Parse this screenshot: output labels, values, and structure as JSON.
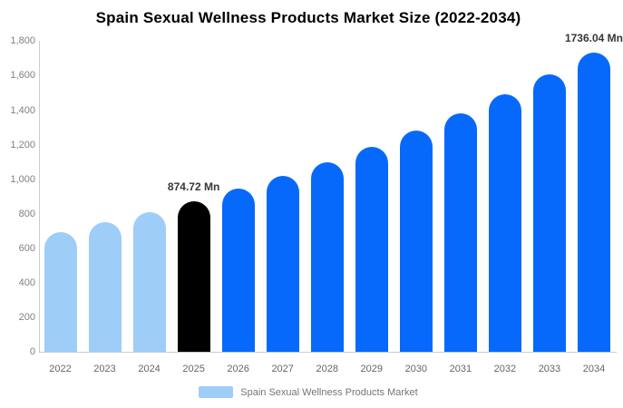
{
  "title": "Spain Sexual Wellness Products Market Size (2022-2034)",
  "legend": {
    "label": "Spain Sexual Wellness Products Market",
    "swatch_color": "#9ECDF8"
  },
  "colors": {
    "past_bar": "#9ECDF8",
    "highlight_bar": "#000000",
    "forecast_bar": "#0669FB",
    "axis_line": "#cccccc",
    "tick_text": "#808080",
    "annotation_text": "#373737"
  },
  "chart_data": {
    "type": "bar",
    "title": "Spain Sexual Wellness Products Market Size (2022-2034)",
    "xlabel": "",
    "ylabel": "",
    "unit": "Mn",
    "categories": [
      "2022",
      "2023",
      "2024",
      "2025",
      "2026",
      "2027",
      "2028",
      "2029",
      "2030",
      "2031",
      "2032",
      "2033",
      "2034"
    ],
    "values": [
      696,
      751,
      811,
      874.72,
      944,
      1019,
      1099,
      1187,
      1281,
      1382,
      1491,
      1610,
      1736.04
    ],
    "bar_roles": [
      "past",
      "past",
      "past",
      "highlight",
      "forecast",
      "forecast",
      "forecast",
      "forecast",
      "forecast",
      "forecast",
      "forecast",
      "forecast",
      "forecast"
    ],
    "annotations": [
      {
        "category": "2025",
        "text": "874.72 Mn"
      },
      {
        "category": "2034",
        "text": "1736.04 Mn"
      }
    ],
    "y_ticks": [
      "0",
      "200",
      "400",
      "600",
      "800",
      "1,000",
      "1,200",
      "1,400",
      "1,600",
      "1,800"
    ],
    "ylim": [
      0,
      1800
    ],
    "grid": false,
    "legend_position": "bottom"
  }
}
